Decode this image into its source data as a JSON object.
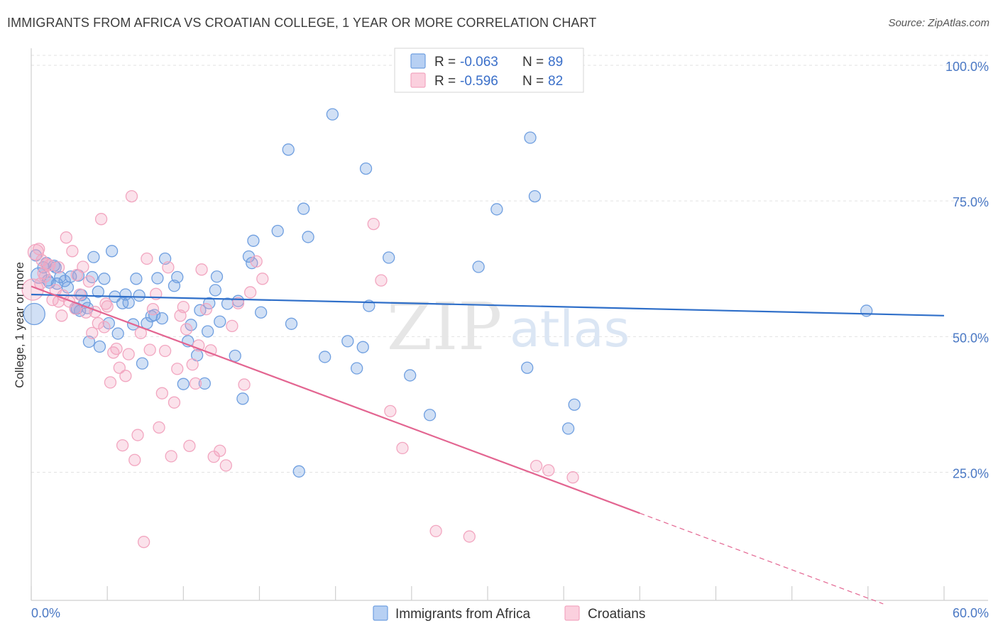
{
  "header": {
    "title": "IMMIGRANTS FROM AFRICA VS CROATIAN COLLEGE, 1 YEAR OR MORE CORRELATION CHART",
    "source": "Source: ZipAtlas.com"
  },
  "watermark": {
    "zip": "ZIP",
    "atlas": "atlas"
  },
  "chart_data": {
    "type": "scatter",
    "title": "IMMIGRANTS FROM AFRICA VS CROATIAN COLLEGE, 1 YEAR OR MORE CORRELATION CHART",
    "xlabel": "",
    "ylabel": "College, 1 year or more",
    "xlim": [
      0,
      60
    ],
    "ylim": [
      0,
      100
    ],
    "x_tick_labels": [
      "0.0%",
      "60.0%"
    ],
    "y_ticks": [
      25,
      50,
      75,
      100
    ],
    "y_tick_labels": [
      "25.0%",
      "50.0%",
      "75.0%",
      "100.0%"
    ],
    "grid": true,
    "legend": {
      "placement": "top-center",
      "entries": [
        {
          "r_label": "R =",
          "r_value": "-0.063",
          "n_label": "N =",
          "n_value": "89"
        },
        {
          "r_label": "R =",
          "r_value": "-0.596",
          "n_label": "N =",
          "n_value": "82"
        }
      ]
    },
    "bottom_legend": [
      "Immigrants from Africa",
      "Croatians"
    ],
    "series": [
      {
        "name": "Immigrants from Africa",
        "color": "#6f9fe0",
        "line_color": "#2f6fc9",
        "trend": {
          "x0": 0,
          "y0": 57.5,
          "x1": 60,
          "y1": 53.6
        },
        "points": [
          [
            0.2,
            53.9
          ],
          [
            0.5,
            61.0
          ],
          [
            0.8,
            62.5
          ],
          [
            1.0,
            63.3
          ],
          [
            1.1,
            60.1
          ],
          [
            1.2,
            59.7
          ],
          [
            1.5,
            62.8
          ],
          [
            1.7,
            59.5
          ],
          [
            1.9,
            60.7
          ],
          [
            2.2,
            60.0
          ],
          [
            2.4,
            58.8
          ],
          [
            2.6,
            60.8
          ],
          [
            2.9,
            55.0
          ],
          [
            3.0,
            54.9
          ],
          [
            3.1,
            61.0
          ],
          [
            3.3,
            57.4
          ],
          [
            3.5,
            56.0
          ],
          [
            3.7,
            55.0
          ],
          [
            3.8,
            48.8
          ],
          [
            4.0,
            60.7
          ],
          [
            4.1,
            64.4
          ],
          [
            4.4,
            58.0
          ],
          [
            4.5,
            47.9
          ],
          [
            4.8,
            60.4
          ],
          [
            5.1,
            52.2
          ],
          [
            5.3,
            65.5
          ],
          [
            5.5,
            57.1
          ],
          [
            5.7,
            50.3
          ],
          [
            6.0,
            55.9
          ],
          [
            6.2,
            57.5
          ],
          [
            6.4,
            56.0
          ],
          [
            6.7,
            52.0
          ],
          [
            6.9,
            60.4
          ],
          [
            7.1,
            57.3
          ],
          [
            7.3,
            44.8
          ],
          [
            7.6,
            52.2
          ],
          [
            7.9,
            53.5
          ],
          [
            8.1,
            53.7
          ],
          [
            8.3,
            60.5
          ],
          [
            8.6,
            53.1
          ],
          [
            8.8,
            64.1
          ],
          [
            9.4,
            59.1
          ],
          [
            9.6,
            60.7
          ],
          [
            10.0,
            41.0
          ],
          [
            10.3,
            48.9
          ],
          [
            10.5,
            51.9
          ],
          [
            10.9,
            46.3
          ],
          [
            11.1,
            54.6
          ],
          [
            11.4,
            41.1
          ],
          [
            11.6,
            50.7
          ],
          [
            11.7,
            55.9
          ],
          [
            12.1,
            58.3
          ],
          [
            12.2,
            60.8
          ],
          [
            12.4,
            52.5
          ],
          [
            12.9,
            55.8
          ],
          [
            13.4,
            46.2
          ],
          [
            13.6,
            56.3
          ],
          [
            13.9,
            38.3
          ],
          [
            14.3,
            64.5
          ],
          [
            14.5,
            63.3
          ],
          [
            14.6,
            67.4
          ],
          [
            15.1,
            54.2
          ],
          [
            16.2,
            69.2
          ],
          [
            16.9,
            84.2
          ],
          [
            17.1,
            52.1
          ],
          [
            17.6,
            24.9
          ],
          [
            17.9,
            73.3
          ],
          [
            18.2,
            68.1
          ],
          [
            19.3,
            46.0
          ],
          [
            19.8,
            90.7
          ],
          [
            20.8,
            48.9
          ],
          [
            21.4,
            43.9
          ],
          [
            21.8,
            47.8
          ],
          [
            22.0,
            80.7
          ],
          [
            22.2,
            55.4
          ],
          [
            23.5,
            64.3
          ],
          [
            24.9,
            42.6
          ],
          [
            26.2,
            35.3
          ],
          [
            29.4,
            62.6
          ],
          [
            30.6,
            73.2
          ],
          [
            32.6,
            44.0
          ],
          [
            32.8,
            86.4
          ],
          [
            33.1,
            75.6
          ],
          [
            35.3,
            32.8
          ],
          [
            35.7,
            37.2
          ],
          [
            54.9,
            54.5
          ],
          [
            0.3,
            64.7
          ],
          [
            1.6,
            62.5
          ],
          [
            3.2,
            54.5
          ]
        ]
      },
      {
        "name": "Croatians",
        "color": "#f2a6c0",
        "line_color": "#e36591",
        "trend": {
          "x0": 0,
          "y0": 59.0,
          "x1": 40.0,
          "y1": 17.2
        },
        "trend_dashed": {
          "x0": 40.0,
          "y0": 17.2,
          "x1": 56.0,
          "y1": 0.5
        },
        "points": [
          [
            0.1,
            58.4
          ],
          [
            0.3,
            65.3
          ],
          [
            0.5,
            65.9
          ],
          [
            0.6,
            59.5
          ],
          [
            0.7,
            63.8
          ],
          [
            0.9,
            60.8
          ],
          [
            1.0,
            63.1
          ],
          [
            1.2,
            62.9
          ],
          [
            1.4,
            56.5
          ],
          [
            1.6,
            58.3
          ],
          [
            1.8,
            62.5
          ],
          [
            2.0,
            53.6
          ],
          [
            2.1,
            57.3
          ],
          [
            2.3,
            68.0
          ],
          [
            2.5,
            56.2
          ],
          [
            2.7,
            65.5
          ],
          [
            2.9,
            54.9
          ],
          [
            3.0,
            61.1
          ],
          [
            3.2,
            57.5
          ],
          [
            3.4,
            62.6
          ],
          [
            3.6,
            54.2
          ],
          [
            3.8,
            59.9
          ],
          [
            4.0,
            50.4
          ],
          [
            4.2,
            54.3
          ],
          [
            4.4,
            52.2
          ],
          [
            4.6,
            71.4
          ],
          [
            4.8,
            51.5
          ],
          [
            5.0,
            55.3
          ],
          [
            5.2,
            41.3
          ],
          [
            5.4,
            46.8
          ],
          [
            5.6,
            47.5
          ],
          [
            5.8,
            44.0
          ],
          [
            6.0,
            29.7
          ],
          [
            6.2,
            42.5
          ],
          [
            6.4,
            46.5
          ],
          [
            6.6,
            75.6
          ],
          [
            6.8,
            27.0
          ],
          [
            7.0,
            31.6
          ],
          [
            7.2,
            50.4
          ],
          [
            7.4,
            11.9
          ],
          [
            7.6,
            64.1
          ],
          [
            7.8,
            47.3
          ],
          [
            8.0,
            54.8
          ],
          [
            8.2,
            57.6
          ],
          [
            8.4,
            33.0
          ],
          [
            8.6,
            39.3
          ],
          [
            8.8,
            47.1
          ],
          [
            9.0,
            62.5
          ],
          [
            9.2,
            27.7
          ],
          [
            9.4,
            37.6
          ],
          [
            9.6,
            43.8
          ],
          [
            9.8,
            53.6
          ],
          [
            10.0,
            55.2
          ],
          [
            10.2,
            51.1
          ],
          [
            10.4,
            29.6
          ],
          [
            10.6,
            44.6
          ],
          [
            10.8,
            41.1
          ],
          [
            11.0,
            48.1
          ],
          [
            11.2,
            62.1
          ],
          [
            11.5,
            54.8
          ],
          [
            11.8,
            47.2
          ],
          [
            12.0,
            27.6
          ],
          [
            12.4,
            28.7
          ],
          [
            12.8,
            26.0
          ],
          [
            13.2,
            51.7
          ],
          [
            13.6,
            55.9
          ],
          [
            14.0,
            40.9
          ],
          [
            14.4,
            57.9
          ],
          [
            14.8,
            63.6
          ],
          [
            15.2,
            60.4
          ],
          [
            22.5,
            70.5
          ],
          [
            23.0,
            60.1
          ],
          [
            23.6,
            36.0
          ],
          [
            24.4,
            29.2
          ],
          [
            26.6,
            13.9
          ],
          [
            28.8,
            12.9
          ],
          [
            33.2,
            25.9
          ],
          [
            34.0,
            25.1
          ],
          [
            35.6,
            23.8
          ],
          [
            4.9,
            55.8
          ],
          [
            1.8,
            56.2
          ],
          [
            0.8,
            61.4
          ]
        ]
      }
    ]
  }
}
